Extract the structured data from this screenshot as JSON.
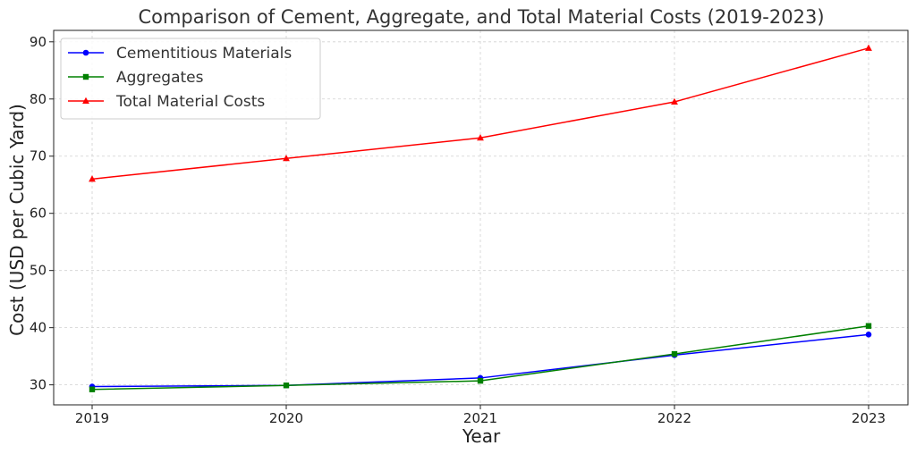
{
  "chart_data": {
    "type": "line",
    "title": "Comparison of Cement, Aggregate, and Total Material Costs (2019-2023)",
    "xlabel": "Year",
    "ylabel": "Cost (USD per Cubic Yard)",
    "categories": [
      "2019",
      "2020",
      "2021",
      "2022",
      "2023"
    ],
    "y_ticks": [
      "30",
      "40",
      "50",
      "60",
      "70",
      "80",
      "90"
    ],
    "ylim": [
      26.5,
      92
    ],
    "grid": true,
    "legend_position": "top-left",
    "series": [
      {
        "name": "Cementitious Materials",
        "color": "#0000ff",
        "marker": "circle",
        "values": [
          29.7,
          29.9,
          31.2,
          35.2,
          38.8
        ]
      },
      {
        "name": "Aggregates",
        "color": "#008000",
        "marker": "square",
        "values": [
          29.2,
          29.9,
          30.7,
          35.4,
          40.3
        ]
      },
      {
        "name": "Total Material Costs",
        "color": "#ff0000",
        "marker": "triangle",
        "values": [
          66.0,
          69.6,
          73.2,
          79.5,
          88.9
        ]
      }
    ]
  }
}
